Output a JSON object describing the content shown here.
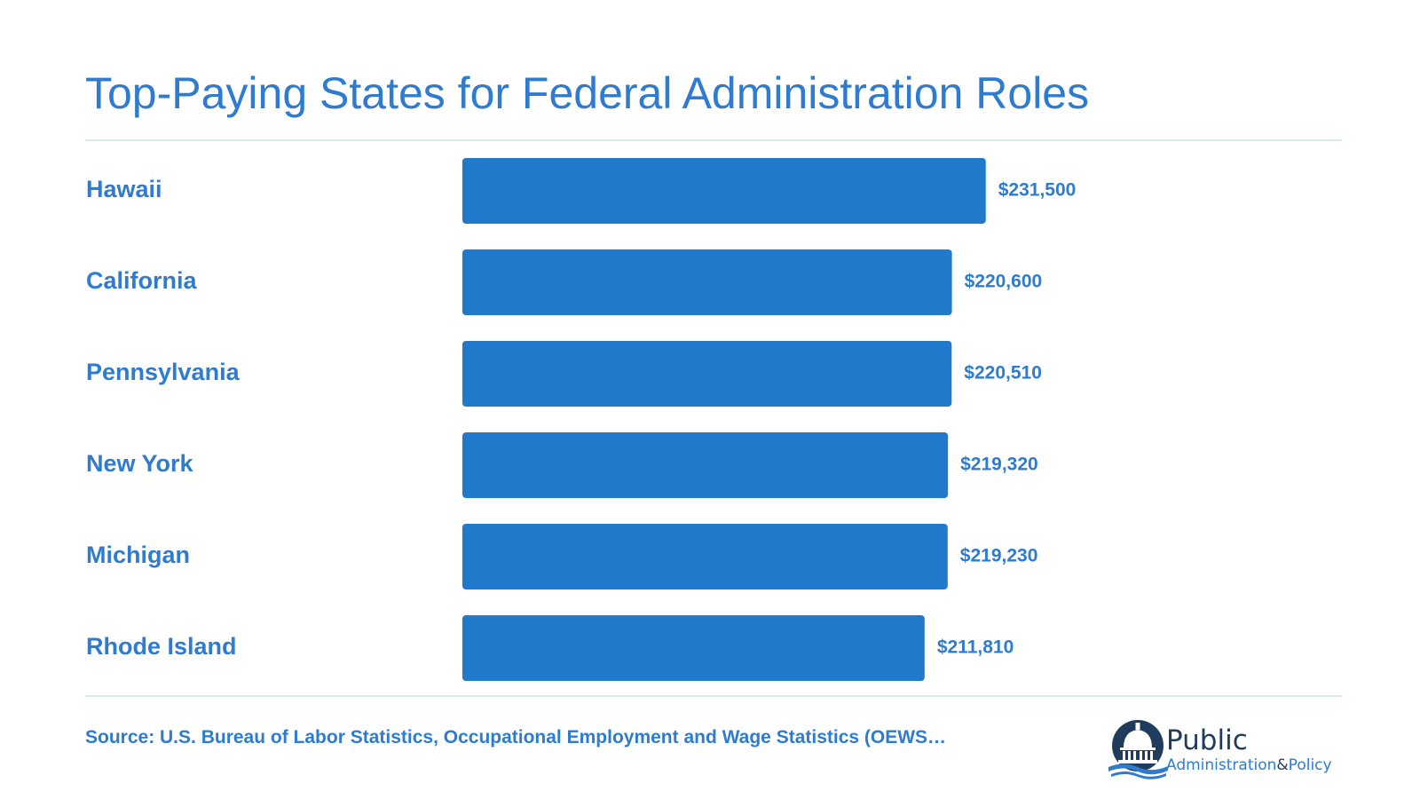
{
  "chart_data": {
    "type": "bar",
    "orientation": "horizontal",
    "title": "Top-Paying States for Federal Administration Roles",
    "categories": [
      "Hawaii",
      "California",
      "Pennsylvania",
      "New York",
      "Michigan",
      "Rhode Island"
    ],
    "values": [
      231500,
      220600,
      220510,
      219320,
      219230,
      211810
    ],
    "value_labels": [
      "$231,500",
      "$220,600",
      "$220,510",
      "$219,320",
      "$219,230",
      "$211,810"
    ],
    "xlabel": "",
    "ylabel": "",
    "grid": false,
    "legend": "none",
    "bar_color": "#2179cb",
    "label_color": "#2e7bcf"
  },
  "source": "Source: U.S. Bureau of Labor Statistics, Occupational Employment and Wage Statistics (OEWS…",
  "logo": {
    "line1": "Public",
    "line2": "Administration",
    "ampersand": "&",
    "line3": "Policy",
    "icon": "capitol-dome-icon",
    "colors": {
      "navy": "#1f3c5c",
      "blue": "#2e7bcf"
    }
  }
}
